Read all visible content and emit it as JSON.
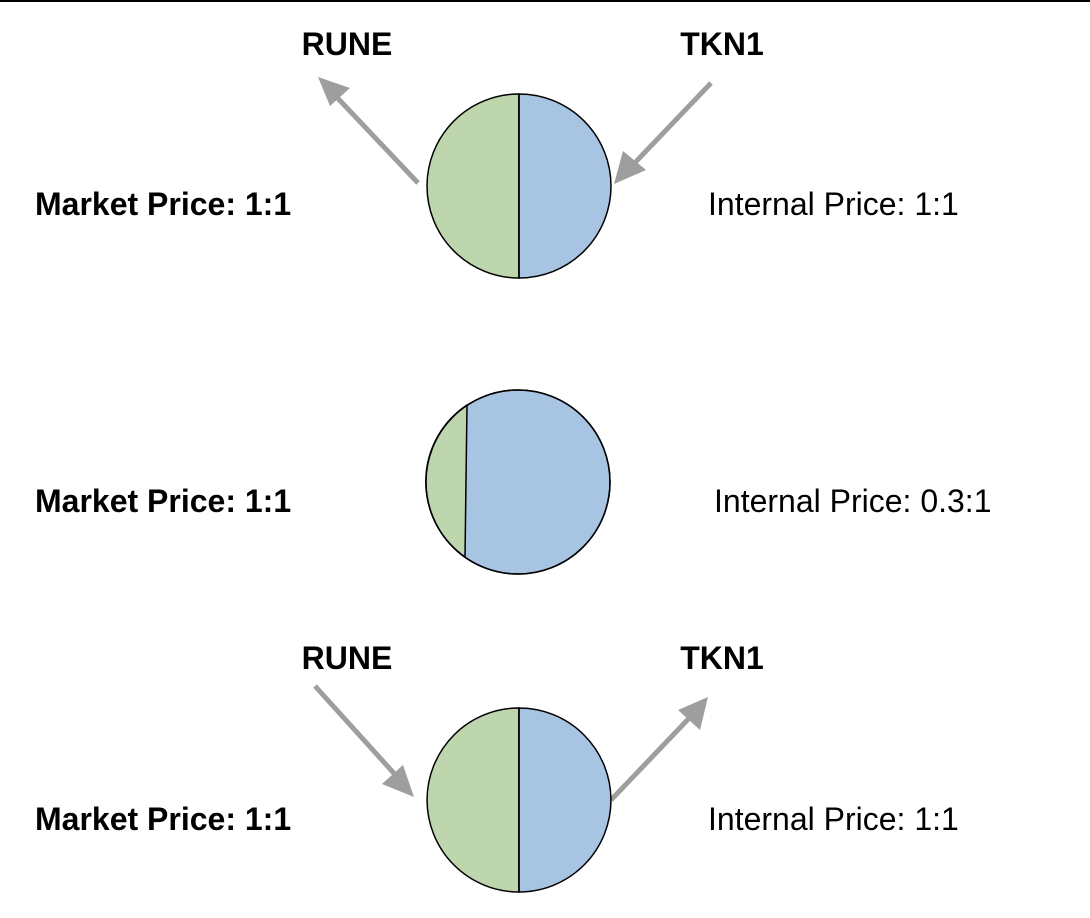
{
  "colors": {
    "rune_fill": "#bdd6ae",
    "tkn_fill": "#a8c4e3",
    "arrow": "#9e9e9e",
    "stroke": "#000000"
  },
  "panels": [
    {
      "rune_label": "RUNE",
      "tkn_label": "TKN1",
      "market_price": "Market Price: 1:1",
      "internal_price": "Internal Price: 1:1",
      "rune_share": 0.5,
      "rune_flow": "out",
      "tkn_flow": "in"
    },
    {
      "rune_label": "",
      "tkn_label": "",
      "market_price": "Market Price: 1:1",
      "internal_price": "Internal Price: 0.3:1",
      "rune_share": 0.23,
      "rune_flow": "none",
      "tkn_flow": "none"
    },
    {
      "rune_label": "RUNE",
      "tkn_label": "TKN1",
      "market_price": "Market Price: 1:1",
      "internal_price": "Internal Price: 1:1",
      "rune_share": 0.5,
      "rune_flow": "in",
      "tkn_flow": "out"
    }
  ]
}
